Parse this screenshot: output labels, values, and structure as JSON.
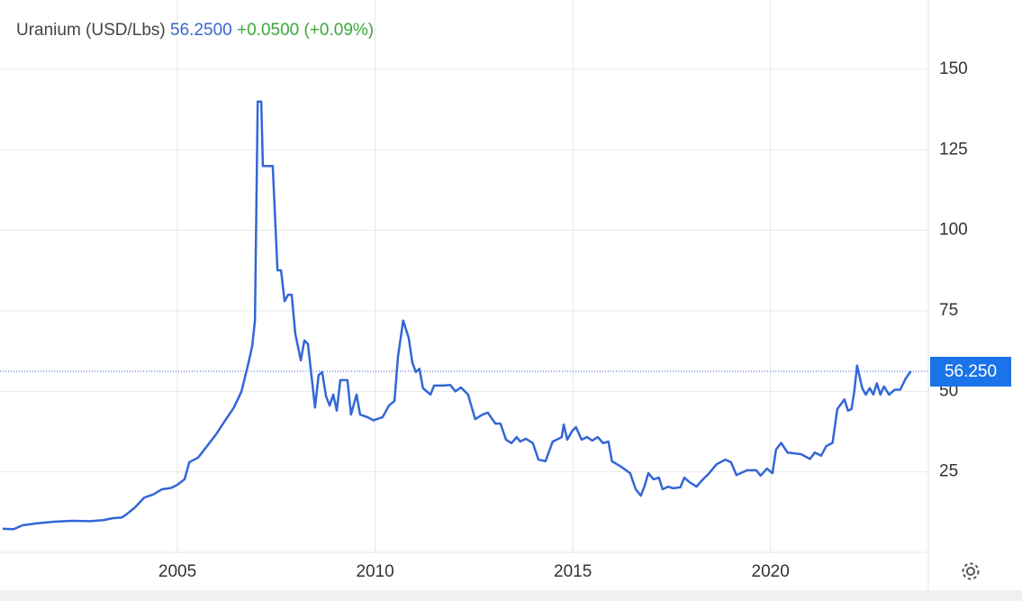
{
  "header": {
    "title": "Uranium (USD/Lbs)",
    "price": "56.2500",
    "change": "+0.0500 (+0.09%)"
  },
  "chart_data": {
    "type": "line",
    "series": [
      {
        "color": "#3366d6",
        "x": [
          2000.58,
          2000.86,
          2001.08,
          2001.43,
          2001.88,
          2002.34,
          2002.79,
          2003.13,
          2003.36,
          2003.59,
          2003.7,
          2003.93,
          2004.16,
          2004.39,
          2004.61,
          2004.84,
          2005.0,
          2005.18,
          2005.3,
          2005.52,
          2005.75,
          2005.98,
          2006.21,
          2006.43,
          2006.62,
          2006.78,
          2006.89,
          2006.96,
          2007.03,
          2007.12,
          2007.16,
          2007.41,
          2007.53,
          2007.62,
          2007.71,
          2007.8,
          2007.89,
          2007.98,
          2008.12,
          2008.21,
          2008.3,
          2008.48,
          2008.57,
          2008.66,
          2008.76,
          2008.85,
          2008.94,
          2009.03,
          2009.12,
          2009.3,
          2009.39,
          2009.53,
          2009.62,
          2009.8,
          2009.96,
          2010.19,
          2010.35,
          2010.49,
          2010.58,
          2010.71,
          2010.85,
          2010.94,
          2011.03,
          2011.12,
          2011.21,
          2011.4,
          2011.49,
          2011.72,
          2011.9,
          2012.03,
          2012.17,
          2012.35,
          2012.53,
          2012.72,
          2012.85,
          2013.04,
          2013.17,
          2013.31,
          2013.45,
          2013.58,
          2013.67,
          2013.81,
          2013.99,
          2014.13,
          2014.31,
          2014.49,
          2014.72,
          2014.77,
          2014.86,
          2014.99,
          2015.08,
          2015.22,
          2015.36,
          2015.49,
          2015.63,
          2015.77,
          2015.9,
          2015.99,
          2016.22,
          2016.45,
          2016.59,
          2016.72,
          2016.81,
          2016.91,
          2017.04,
          2017.18,
          2017.27,
          2017.41,
          2017.54,
          2017.72,
          2017.82,
          2017.95,
          2018.13,
          2018.27,
          2018.45,
          2018.64,
          2018.86,
          2019.0,
          2019.14,
          2019.41,
          2019.64,
          2019.75,
          2019.91,
          2020.05,
          2020.14,
          2020.27,
          2020.43,
          2020.77,
          2021.0,
          2021.12,
          2021.28,
          2021.41,
          2021.57,
          2021.69,
          2021.87,
          2021.96,
          2022.05,
          2022.12,
          2022.19,
          2022.32,
          2022.41,
          2022.51,
          2022.6,
          2022.69,
          2022.78,
          2022.87,
          2023.0,
          2023.14,
          2023.28,
          2023.42,
          2023.55
        ],
        "values": [
          7.3,
          7.2,
          8.4,
          9,
          9.5,
          9.8,
          9.7,
          10,
          10.6,
          10.8,
          11.7,
          14,
          17,
          18,
          19.6,
          20,
          21,
          22.7,
          28,
          29.4,
          33,
          36.7,
          41,
          45,
          50,
          58,
          64,
          72,
          140,
          140,
          120,
          120,
          87.6,
          87.6,
          78,
          80,
          80,
          68,
          59.6,
          65.8,
          64.7,
          45,
          55,
          56,
          48.4,
          45.6,
          49,
          44,
          53.5,
          53.5,
          42.8,
          49,
          42.8,
          42,
          41,
          42,
          45.6,
          47,
          61,
          72,
          66.6,
          59,
          56,
          57,
          51,
          49,
          51.8,
          51.8,
          52,
          50,
          51.2,
          49,
          41.4,
          42.8,
          43.4,
          40,
          40,
          35,
          33.9,
          35.8,
          34.4,
          35.3,
          33.9,
          28.8,
          28.3,
          34.4,
          35.8,
          39.7,
          35,
          37.8,
          38.9,
          35,
          35.8,
          34.7,
          35.8,
          33.9,
          34.4,
          28.3,
          26.6,
          24.6,
          19.6,
          17.6,
          20.4,
          24.6,
          22.7,
          23.2,
          19.6,
          20.4,
          19.9,
          20.2,
          23.2,
          21.8,
          20.4,
          22.4,
          24.6,
          27.4,
          28.8,
          28,
          24,
          25.5,
          25.5,
          23.8,
          26,
          24.6,
          31.9,
          34,
          31,
          30.5,
          29,
          31,
          30,
          33,
          34,
          44.5,
          47.5,
          44,
          44.5,
          50,
          58,
          51,
          49,
          51,
          49,
          52.5,
          49,
          51.5,
          49,
          50.5,
          50.5,
          54,
          56.25
        ]
      }
    ],
    "current": {
      "value": 56.25,
      "label": "56.250"
    },
    "xlim": [
      2000.58,
      2023.97
    ],
    "xticks": [
      2005,
      2010,
      2015,
      2020
    ],
    "ylim": [
      0,
      165
    ],
    "yticks": [
      25,
      50,
      75,
      100,
      125,
      150
    ],
    "grid": true
  }
}
